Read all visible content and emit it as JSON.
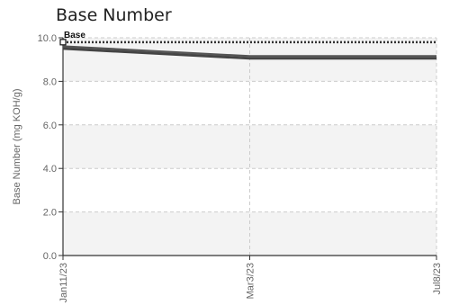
{
  "chart_data": {
    "type": "line",
    "title": "Base Number",
    "ylabel": "Base Number (mg KOH/g)",
    "xlabel": "",
    "x": [
      "Jan11/23",
      "Mar3/23",
      "Jul8/23"
    ],
    "ylim": [
      0,
      10
    ],
    "yticks": [
      "0.0",
      "2.0",
      "4.0",
      "6.0",
      "8.0",
      "10.0"
    ],
    "grid": true,
    "series": [
      {
        "name": "Base",
        "values": [
          9.8,
          9.8,
          9.8
        ],
        "style": "dotted-marker",
        "color": "#333333"
      },
      {
        "name": "",
        "values": [
          9.6,
          9.15,
          9.15
        ],
        "style": "solid",
        "color": "#555555"
      },
      {
        "name": "",
        "values": [
          9.5,
          9.05,
          9.05
        ],
        "style": "solid",
        "color": "#444444"
      }
    ],
    "annotations": [
      {
        "text": "Base",
        "x": "Jan11/23",
        "y": 9.8
      }
    ]
  }
}
